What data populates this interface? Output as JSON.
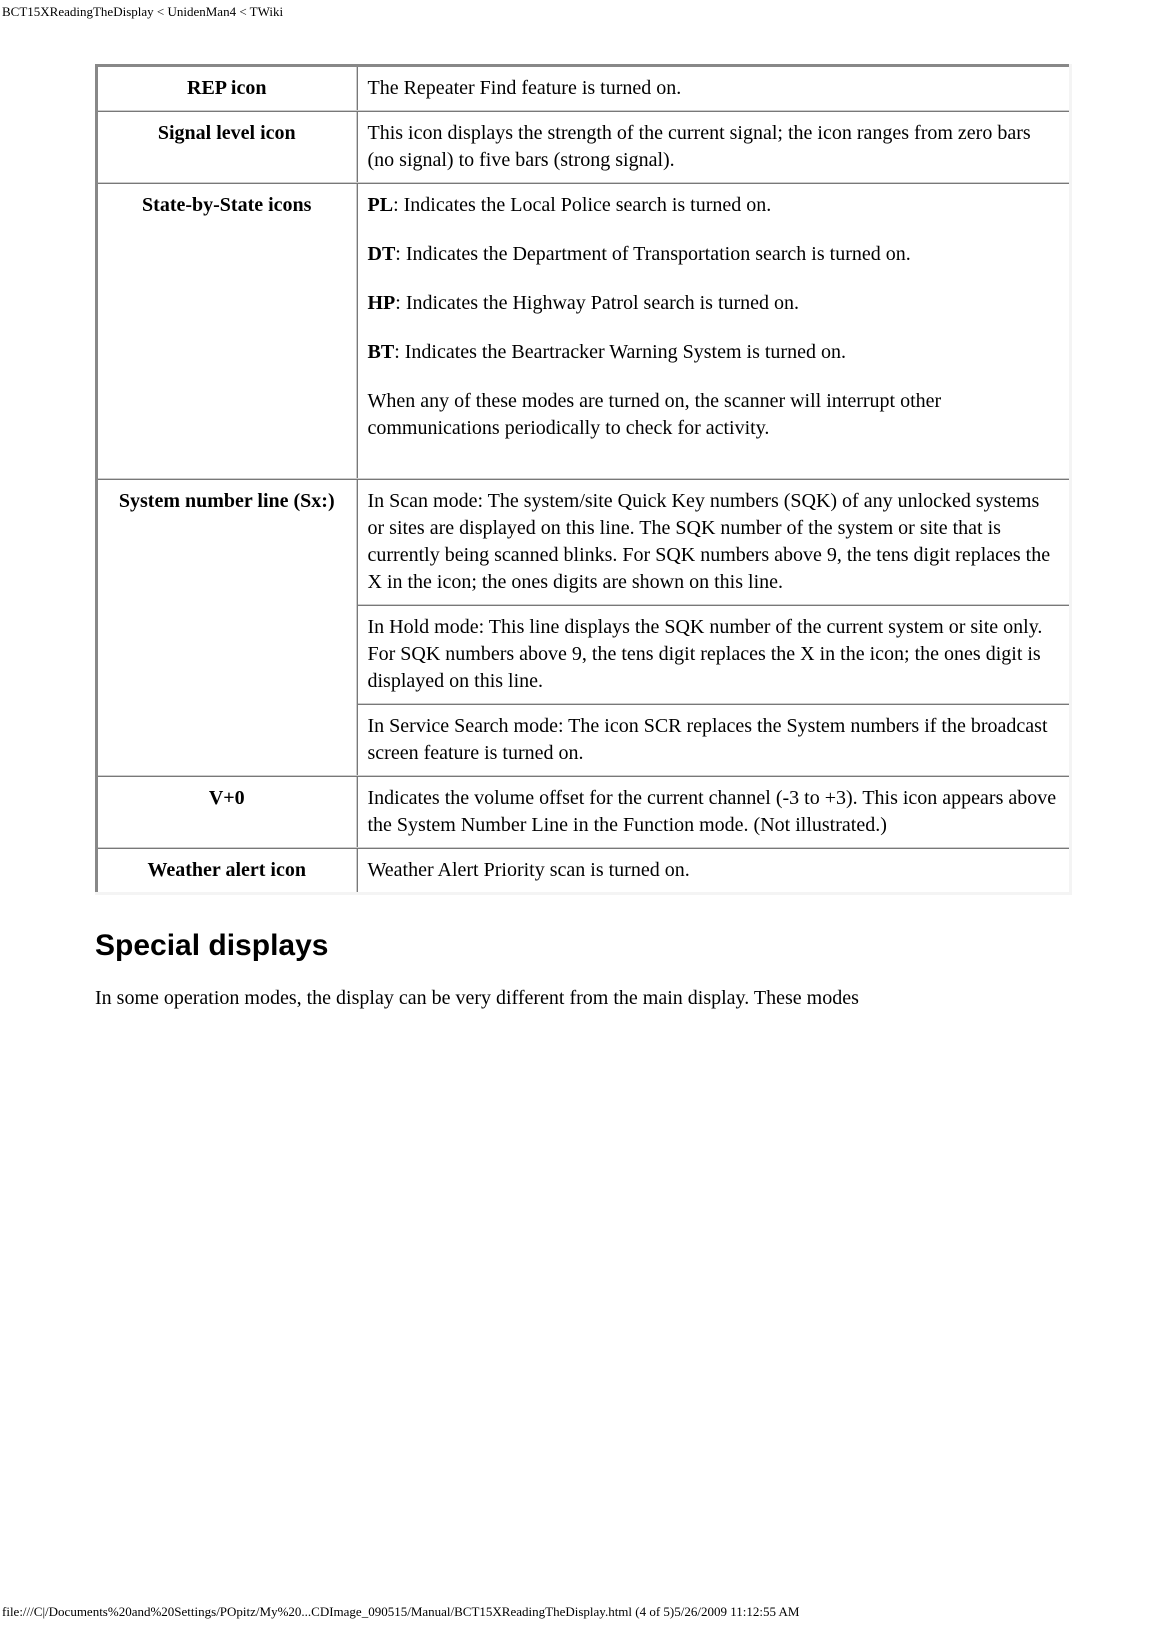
{
  "header": {
    "path": "BCT15XReadingTheDisplay < UnidenMan4 < TWiki"
  },
  "table": {
    "rows": [
      {
        "label": "REP icon",
        "desc": "The Repeater Find feature is turned on."
      },
      {
        "label": "Signal level icon",
        "desc": "This icon displays the strength of the current signal; the icon ranges from zero bars (no signal) to five bars (strong signal)."
      },
      {
        "label": "State-by-State icons",
        "state_items": [
          {
            "code": "PL",
            "text": ": Indicates the Local Police search is turned on."
          },
          {
            "code": "DT",
            "text": ": Indicates the Department of Transportation search is turned on."
          },
          {
            "code": "HP",
            "text": ": Indicates the Highway Patrol search is turned on."
          },
          {
            "code": "BT",
            "text": ": Indicates the Beartracker Warning System is turned on."
          }
        ],
        "state_footer": "When any of these modes are turned on, the scanner will interrupt other communications periodically to check for activity."
      },
      {
        "label": "System number line (Sx:)",
        "multi": [
          "In Scan mode: The system/site Quick Key numbers (SQK) of any unlocked systems or sites are displayed on this line. The SQK number of the system or site that is currently being scanned blinks. For SQK numbers above 9, the tens digit replaces the X in the icon; the ones digits are shown on this line.",
          "In Hold mode: This line displays the SQK number of the current system or site only. For SQK numbers above 9, the tens digit replaces the X in the icon; the ones digit is displayed on this line.",
          "In Service Search mode: The icon SCR replaces the System numbers if the broadcast screen feature is turned on."
        ]
      },
      {
        "label": "V+0",
        "desc": "Indicates the volume offset for the current channel (-3 to +3). This icon appears above the System Number Line in the Function mode. (Not illustrated.)"
      },
      {
        "label": "Weather alert icon",
        "desc": "Weather Alert Priority scan is turned on."
      }
    ]
  },
  "section_heading": "Special displays",
  "body_para": "In some operation modes, the display can be very different from the main display. These modes",
  "footer": {
    "text": "file:///C|/Documents%20and%20Settings/POpitz/My%20...CDImage_090515/Manual/BCT15XReadingTheDisplay.html (4 of 5)5/26/2009 11:12:55 AM"
  }
}
